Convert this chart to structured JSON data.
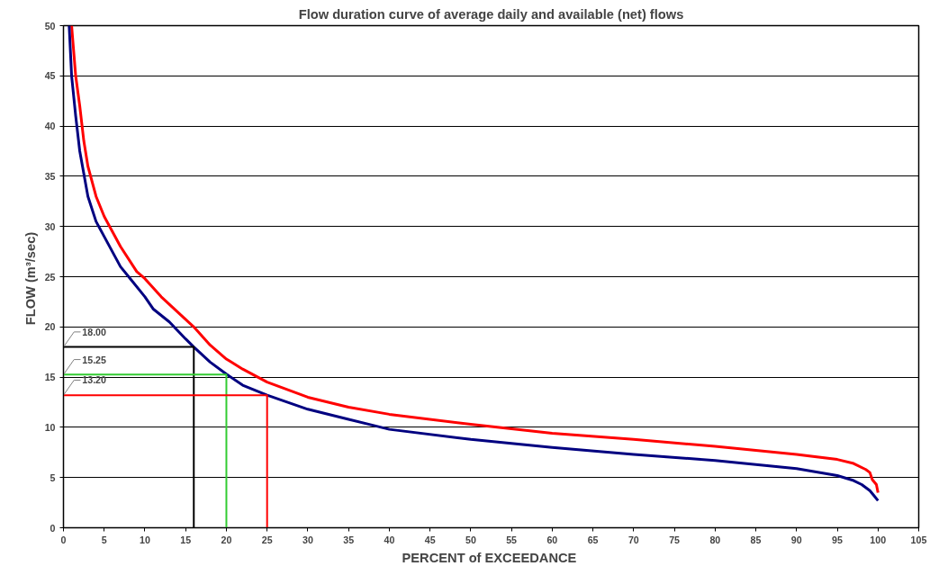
{
  "chart_data": {
    "type": "line",
    "title": "Flow duration curve of average daily and available (net) flows",
    "xlabel": "PERCENT of  EXCEEDANCE",
    "ylabel": "FLOW  (m³/sec)",
    "xlim": [
      0,
      105
    ],
    "xticks": [
      0,
      5,
      10,
      15,
      20,
      25,
      30,
      35,
      40,
      45,
      50,
      55,
      60,
      65,
      70,
      75,
      80,
      85,
      90,
      95,
      100,
      105
    ],
    "ylim": [
      0,
      50
    ],
    "yticks": [
      0,
      5,
      10,
      15,
      20,
      25,
      30,
      35,
      40,
      45,
      50
    ],
    "grid": "y",
    "marker": "none",
    "line_style": "solid",
    "series": [
      {
        "color": "#ff0000",
        "x": [
          1,
          1.5,
          2,
          2.5,
          3,
          4,
          5,
          6,
          7,
          9,
          10,
          12,
          14,
          16,
          18,
          20,
          22,
          25,
          30,
          35,
          40,
          50,
          60,
          70,
          80,
          90,
          95,
          97,
          98.5,
          99,
          99.3,
          99.8,
          100
        ],
        "values": [
          50,
          45,
          42,
          38.5,
          36,
          33,
          31,
          29.5,
          28,
          25.5,
          24.8,
          23,
          21.5,
          20,
          18.2,
          16.8,
          15.8,
          14.5,
          13,
          12,
          11.3,
          10.3,
          9.4,
          8.8,
          8.1,
          7.3,
          6.8,
          6.4,
          5.8,
          5.5,
          4.8,
          4.3,
          3.5
        ]
      },
      {
        "color": "#000080",
        "x": [
          0.7,
          1,
          1.5,
          2,
          3,
          4,
          5,
          6,
          7,
          8,
          10,
          11,
          13,
          15,
          16,
          18,
          20,
          22,
          25,
          30,
          35,
          38,
          40,
          50,
          60,
          70,
          80,
          90,
          95,
          97,
          98,
          99,
          99.5,
          100
        ],
        "values": [
          50,
          45,
          41,
          37.5,
          33,
          30.5,
          29,
          27.5,
          26,
          25,
          23,
          21.8,
          20.5,
          18.8,
          18,
          16.5,
          15.3,
          14.2,
          13.2,
          11.8,
          10.8,
          10.2,
          9.8,
          8.8,
          8,
          7.3,
          6.7,
          5.9,
          5.2,
          4.7,
          4.3,
          3.7,
          3.2,
          2.7
        ]
      },
      {
        "color": "#000000",
        "x": [
          0,
          16,
          16
        ],
        "values": [
          18,
          18,
          0
        ]
      },
      {
        "color": "#33cc33",
        "x": [
          0,
          20,
          20
        ],
        "values": [
          15.25,
          15.25,
          0
        ]
      },
      {
        "color": "#ff0000",
        "x": [
          0,
          25,
          25
        ],
        "values": [
          13.2,
          13.2,
          0
        ]
      }
    ],
    "annotations": [
      {
        "text": "18.00",
        "y": 18
      },
      {
        "text": "15.25",
        "y": 15.25
      },
      {
        "text": "13.20",
        "y": 13.2
      }
    ]
  }
}
